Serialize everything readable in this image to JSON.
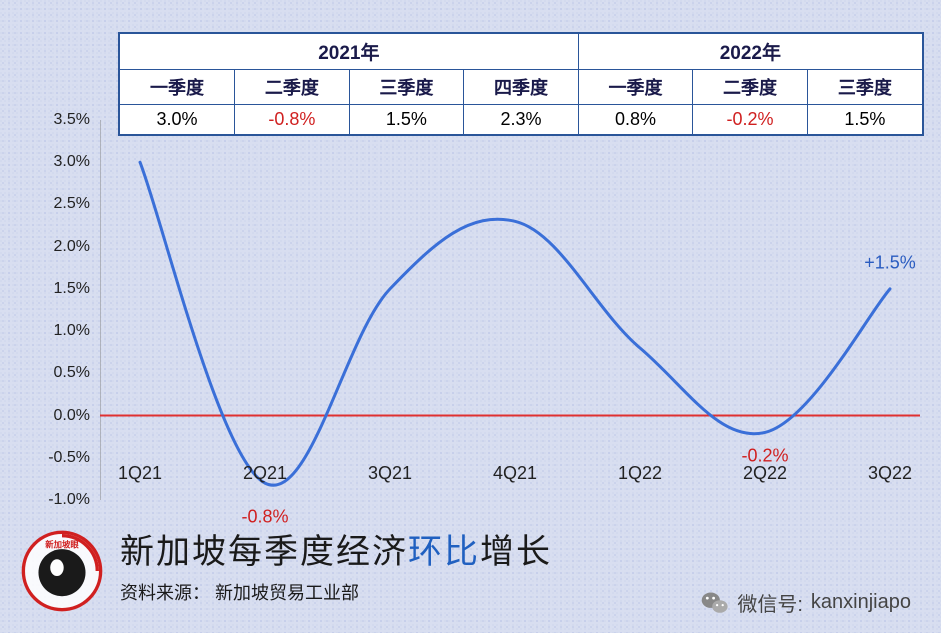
{
  "table": {
    "years": [
      {
        "label": "2021年",
        "span": 4
      },
      {
        "label": "2022年",
        "span": 3
      }
    ],
    "quarters": [
      "一季度",
      "二季度",
      "三季度",
      "四季度",
      "一季度",
      "二季度",
      "三季度"
    ],
    "values": [
      {
        "text": "3.0%",
        "neg": false
      },
      {
        "text": "-0.8%",
        "neg": true
      },
      {
        "text": "1.5%",
        "neg": false
      },
      {
        "text": "2.3%",
        "neg": false
      },
      {
        "text": "0.8%",
        "neg": false
      },
      {
        "text": "-0.2%",
        "neg": true
      },
      {
        "text": "1.5%",
        "neg": false
      }
    ]
  },
  "chart": {
    "type": "line",
    "x_labels": [
      "1Q21",
      "2Q21",
      "3Q21",
      "4Q21",
      "1Q22",
      "2Q22",
      "3Q22"
    ],
    "y_values": [
      3.0,
      -0.8,
      1.5,
      2.3,
      0.8,
      -0.2,
      1.5
    ],
    "ylim": [
      -1.0,
      3.5
    ],
    "ytick_step": 0.5,
    "y_format_suffix": "%",
    "y_format_decimals": 1,
    "line_color": "#3a6fd8",
    "line_width": 3,
    "zero_line_color": "#e03030",
    "zero_line_width": 2,
    "axis_color": "#888888",
    "axis_width": 1,
    "point_labels": [
      {
        "idx": 1,
        "text": "-0.8%",
        "color": "#d02020",
        "dy": 34
      },
      {
        "idx": 5,
        "text": "-0.2%",
        "color": "#d02020",
        "dy": 24
      },
      {
        "idx": 6,
        "text": "+1.5%",
        "color": "#2a5cc0",
        "dy": -26
      }
    ],
    "x_label_offset_y": 0.58,
    "background_color": "transparent",
    "smooth": true
  },
  "title": {
    "pre": "新加坡每季度经济",
    "highlight": "环比",
    "post": "增长",
    "source_label": "资料来源：",
    "source_value": "新加坡贸易工业部"
  },
  "footer": {
    "label": "微信号:",
    "value": "kanxinjiapo"
  },
  "colors": {
    "bg": "#d8def0",
    "table_border": "#2a5599",
    "text": "#1a1a1a"
  }
}
